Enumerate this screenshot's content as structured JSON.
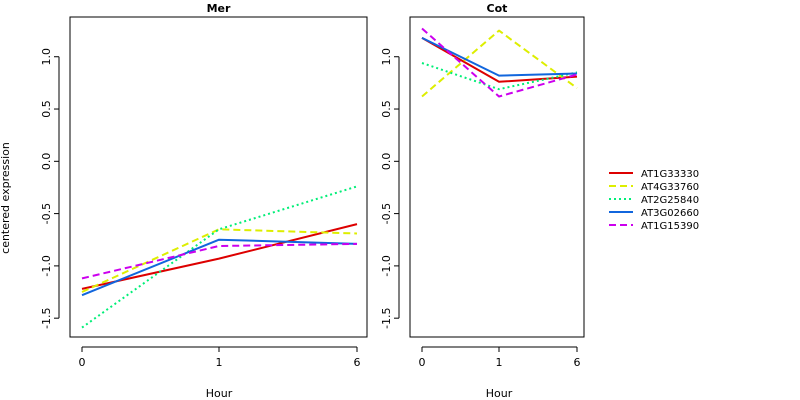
{
  "chart_data": [
    {
      "type": "line",
      "title": "Mer",
      "xlabel": "Hour",
      "ylabel": "centered expression",
      "x": [
        "0",
        "1",
        "6"
      ],
      "yticks": [
        "-1.5",
        "-1.0",
        "-0.5",
        "0.0",
        "0.5",
        "1.0"
      ],
      "ylim": [
        -1.68,
        1.38
      ],
      "series": [
        {
          "name": "AT1G33330",
          "values": [
            -1.22,
            -0.93,
            -0.6
          ]
        },
        {
          "name": "AT4G33760",
          "values": [
            -1.25,
            -0.65,
            -0.69
          ]
        },
        {
          "name": "AT2G25840",
          "values": [
            -1.59,
            -0.65,
            -0.24
          ]
        },
        {
          "name": "AT3G02660",
          "values": [
            -1.28,
            -0.75,
            -0.79
          ]
        },
        {
          "name": "AT1G15390",
          "values": [
            -1.12,
            -0.81,
            -0.79
          ]
        }
      ]
    },
    {
      "type": "line",
      "title": "Cot",
      "xlabel": "Hour",
      "ylabel": "",
      "x": [
        "0",
        "1",
        "6"
      ],
      "yticks": [
        "-1.5",
        "-1.0",
        "-0.5",
        "0.0",
        "0.5",
        "1.0"
      ],
      "ylim": [
        -1.68,
        1.38
      ],
      "series": [
        {
          "name": "AT1G33330",
          "values": [
            1.18,
            0.76,
            0.81
          ]
        },
        {
          "name": "AT4G33760",
          "values": [
            0.62,
            1.25,
            0.7
          ]
        },
        {
          "name": "AT2G25840",
          "values": [
            0.94,
            0.69,
            0.85
          ]
        },
        {
          "name": "AT3G02660",
          "values": [
            1.18,
            0.82,
            0.84
          ]
        },
        {
          "name": "AT1G15390",
          "values": [
            1.27,
            0.62,
            0.83
          ]
        }
      ]
    }
  ],
  "legend": {
    "placement": "right",
    "entries": [
      {
        "label": "AT1G33330",
        "color": "#dd0000",
        "dash": "solid"
      },
      {
        "label": "AT4G33760",
        "color": "#ddee00",
        "dash": "dashed"
      },
      {
        "label": "AT2G25840",
        "color": "#00ee77",
        "dash": "dotted"
      },
      {
        "label": "AT3G02660",
        "color": "#1166dd",
        "dash": "solid"
      },
      {
        "label": "AT1G15390",
        "color": "#cc00ee",
        "dash": "dashed"
      }
    ]
  }
}
